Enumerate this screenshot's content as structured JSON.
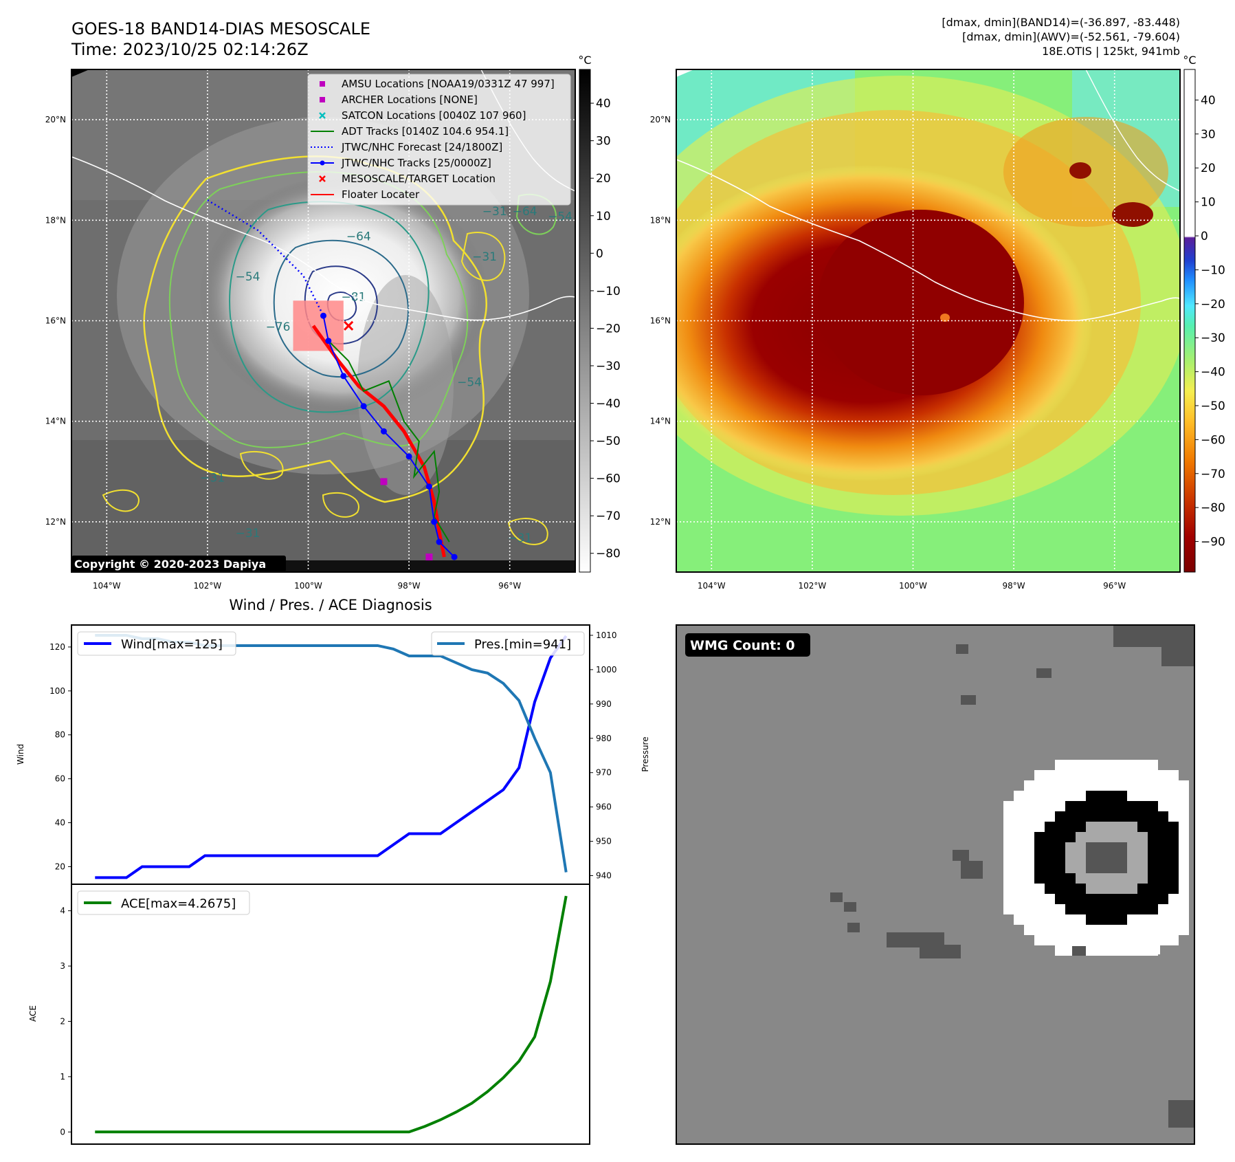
{
  "header": {
    "title_line1": "GOES-18 BAND14-DIAS MESOSCALE",
    "title_line2": "Time: 2023/10/25 02:14:26Z",
    "right_line1": "[dmax, dmin](BAND14)=(-36.897, -83.448)",
    "right_line2": "[dmax, dmin](AWV)=(-52.561, -79.604)",
    "right_line3": "18E.OTIS | 125kt, 941mb"
  },
  "maps": {
    "lat_labels": [
      "20°N",
      "18°N",
      "16°N",
      "14°N",
      "12°N"
    ],
    "lat_values": [
      20,
      18,
      16,
      14,
      12
    ],
    "lon_labels": [
      "104°W",
      "102°W",
      "100°W",
      "98°W",
      "96°W"
    ],
    "lon_values": [
      104,
      102,
      100,
      98,
      96
    ],
    "lon_range": [
      104.7,
      94.7
    ],
    "lat_range": [
      11.0,
      21.0
    ],
    "copyright": "Copyright © 2020-2023 Dapiya",
    "colors": {
      "coastline": "#ffffff",
      "grid": "#ffffff"
    }
  },
  "map_left": {
    "colorbar_unit": "°C",
    "colorbar_ticks": [
      "40",
      "30",
      "20",
      "10",
      "0",
      "−10",
      "−20",
      "−30",
      "−40",
      "−50",
      "−60",
      "−70",
      "−80"
    ],
    "colorbar_values": [
      40,
      30,
      20,
      10,
      0,
      -10,
      -20,
      -30,
      -40,
      -50,
      -60,
      -70,
      -80
    ],
    "colorbar_range": [
      -85,
      49
    ],
    "contour_labels": [
      {
        "text": "−64",
        "lon": 99.0,
        "lat": 17.6
      },
      {
        "text": "−81",
        "lon": 99.1,
        "lat": 16.4
      },
      {
        "text": "−76",
        "lon": 100.6,
        "lat": 15.8
      },
      {
        "text": "−54",
        "lon": 101.2,
        "lat": 16.8
      },
      {
        "text": "−54",
        "lon": 95.0,
        "lat": 18.0
      },
      {
        "text": "−64",
        "lon": 95.7,
        "lat": 18.1
      },
      {
        "text": "−31",
        "lon": 96.3,
        "lat": 18.1
      },
      {
        "text": "−31",
        "lon": 96.5,
        "lat": 17.2
      },
      {
        "text": "−54",
        "lon": 96.8,
        "lat": 14.7
      },
      {
        "text": "−31",
        "lon": 101.9,
        "lat": 12.8
      },
      {
        "text": "−31",
        "lon": 95.8,
        "lat": 11.6
      },
      {
        "text": "−31",
        "lon": 101.2,
        "lat": 11.7
      }
    ],
    "legend": [
      {
        "label": "AMSU Locations [NOAA19/0331Z 47 997]",
        "symbol": "square",
        "color": "#bf00bf"
      },
      {
        "label": "ARCHER Locations [NONE]",
        "symbol": "square",
        "color": "#bf00bf"
      },
      {
        "label": "SATCON Locations [0040Z 107 960]",
        "symbol": "x",
        "color": "#00bfbf"
      },
      {
        "label": "ADT Tracks [0140Z 104.6 954.1]",
        "symbol": "line",
        "color": "#008000"
      },
      {
        "label": "JTWC/NHC Forecast [24/1800Z]",
        "symbol": "dotted",
        "color": "#0000ff"
      },
      {
        "label": "JTWC/NHC Tracks [25/0000Z]",
        "symbol": "line-dot",
        "color": "#0000ff"
      },
      {
        "label": "MESOSCALE/TARGET Location",
        "symbol": "x",
        "color": "#ff0000"
      },
      {
        "label": "Floater Locater",
        "symbol": "line",
        "color": "#ff0000"
      }
    ],
    "jtwc_forecast": [
      [
        102.0,
        18.4
      ],
      [
        101.0,
        17.8
      ],
      [
        100.1,
        16.9
      ],
      [
        99.7,
        16.1
      ]
    ],
    "jtwc_track": [
      [
        99.7,
        16.1
      ],
      [
        99.6,
        15.6
      ],
      [
        99.3,
        14.9
      ],
      [
        98.9,
        14.3
      ],
      [
        98.5,
        13.8
      ],
      [
        98.0,
        13.3
      ],
      [
        97.6,
        12.7
      ],
      [
        97.5,
        12.0
      ],
      [
        97.4,
        11.6
      ],
      [
        97.1,
        11.3
      ]
    ],
    "adt_track": [
      [
        99.6,
        15.6
      ],
      [
        99.2,
        15.2
      ],
      [
        98.9,
        14.6
      ],
      [
        98.4,
        14.8
      ],
      [
        98.1,
        14.0
      ],
      [
        97.8,
        13.6
      ],
      [
        97.9,
        12.9
      ],
      [
        97.5,
        13.4
      ],
      [
        97.4,
        12.6
      ],
      [
        97.5,
        12.1
      ],
      [
        97.2,
        11.6
      ]
    ],
    "floater_track": [
      [
        99.9,
        15.9
      ],
      [
        99.4,
        15.2
      ],
      [
        99.0,
        14.7
      ],
      [
        98.5,
        14.3
      ],
      [
        98.1,
        13.8
      ],
      [
        97.7,
        13.1
      ],
      [
        97.5,
        12.4
      ],
      [
        97.4,
        11.8
      ],
      [
        97.3,
        11.3
      ]
    ],
    "amsu_points": [
      [
        98.5,
        12.8
      ],
      [
        97.6,
        11.3
      ]
    ],
    "target_point": [
      99.2,
      15.9
    ],
    "floater_box": {
      "lon_min": 99.3,
      "lon_max": 100.3,
      "lat_min": 15.4,
      "lat_max": 16.4
    }
  },
  "map_right": {
    "colorbar_unit": "°C",
    "colorbar_ticks": [
      "40",
      "30",
      "20",
      "10",
      "0",
      "−10",
      "−20",
      "−30",
      "−40",
      "−50",
      "−60",
      "−70",
      "−80",
      "−90"
    ],
    "colorbar_values": [
      40,
      30,
      20,
      10,
      0,
      -10,
      -20,
      -30,
      -40,
      -50,
      -60,
      -70,
      -80,
      -90
    ],
    "colorbar_range": [
      -99,
      49
    ]
  },
  "diagnosis": {
    "title": "Wind / Pres. / ACE Diagnosis",
    "wind_legend": "Wind[max=125]",
    "pres_legend": "Pres.[min=941]",
    "ace_legend": "ACE[max=4.2675]",
    "wind_ylabel": "Wind",
    "pres_ylabel": "Pressure",
    "ace_ylabel": "ACE",
    "wind_ticks": [
      "20",
      "40",
      "60",
      "80",
      "100",
      "120"
    ],
    "wind_tick_values": [
      20,
      40,
      60,
      80,
      100,
      120
    ],
    "wind_range": [
      12,
      130
    ],
    "pres_ticks": [
      "940",
      "950",
      "960",
      "970",
      "980",
      "990",
      "1000",
      "1010"
    ],
    "pres_tick_values": [
      940,
      950,
      960,
      970,
      980,
      990,
      1000,
      1010
    ],
    "pres_range": [
      937.5,
      1013
    ],
    "ace_ticks": [
      "0",
      "1",
      "2",
      "3",
      "4"
    ],
    "ace_tick_values": [
      0,
      1,
      2,
      3,
      4
    ],
    "ace_range": [
      -0.22,
      4.48
    ],
    "colors": {
      "wind": "#0000ff",
      "pres": "#1f77b4",
      "ace": "#008000"
    }
  },
  "wmg": {
    "label": "WMG Count: 0"
  },
  "chart_data": [
    {
      "type": "line",
      "x": [
        0,
        1,
        2,
        3,
        4,
        5,
        6,
        7,
        8,
        9,
        10,
        11,
        12,
        13,
        14,
        15,
        16,
        17,
        18,
        19,
        20,
        21,
        22,
        23,
        24,
        25,
        26,
        27,
        28,
        29,
        30
      ],
      "series": [
        {
          "name": "Wind[max=125]",
          "axis": "left",
          "values": [
            15,
            15,
            15,
            20,
            20,
            20,
            20,
            25,
            25,
            25,
            25,
            25,
            25,
            25,
            25,
            25,
            25,
            25,
            25,
            30,
            35,
            35,
            35,
            40,
            45,
            50,
            55,
            65,
            95,
            115,
            125
          ]
        },
        {
          "name": "Pres.[min=941]",
          "axis": "right",
          "values": [
            1010,
            1010,
            1010,
            1009,
            1009,
            1008,
            1008,
            1007,
            1007,
            1007,
            1007,
            1007,
            1007,
            1007,
            1007,
            1007,
            1007,
            1007,
            1007,
            1006,
            1004,
            1004,
            1004,
            1002,
            1000,
            999,
            996,
            991,
            980,
            970,
            941
          ]
        }
      ],
      "ylim_left": [
        12,
        130
      ],
      "ylim_right": [
        937.5,
        1013
      ]
    },
    {
      "type": "line",
      "x": [
        0,
        1,
        2,
        3,
        4,
        5,
        6,
        7,
        8,
        9,
        10,
        11,
        12,
        13,
        14,
        15,
        16,
        17,
        18,
        19,
        20,
        21,
        22,
        23,
        24,
        25,
        26,
        27,
        28,
        29,
        30
      ],
      "series": [
        {
          "name": "ACE[max=4.2675]",
          "values": [
            0,
            0,
            0,
            0,
            0,
            0,
            0,
            0,
            0,
            0,
            0,
            0,
            0,
            0,
            0,
            0,
            0,
            0,
            0,
            0,
            0,
            0.1,
            0.22,
            0.36,
            0.52,
            0.73,
            0.98,
            1.28,
            1.72,
            2.72,
            4.2675
          ]
        }
      ],
      "ylim": [
        -0.22,
        4.48
      ]
    }
  ]
}
